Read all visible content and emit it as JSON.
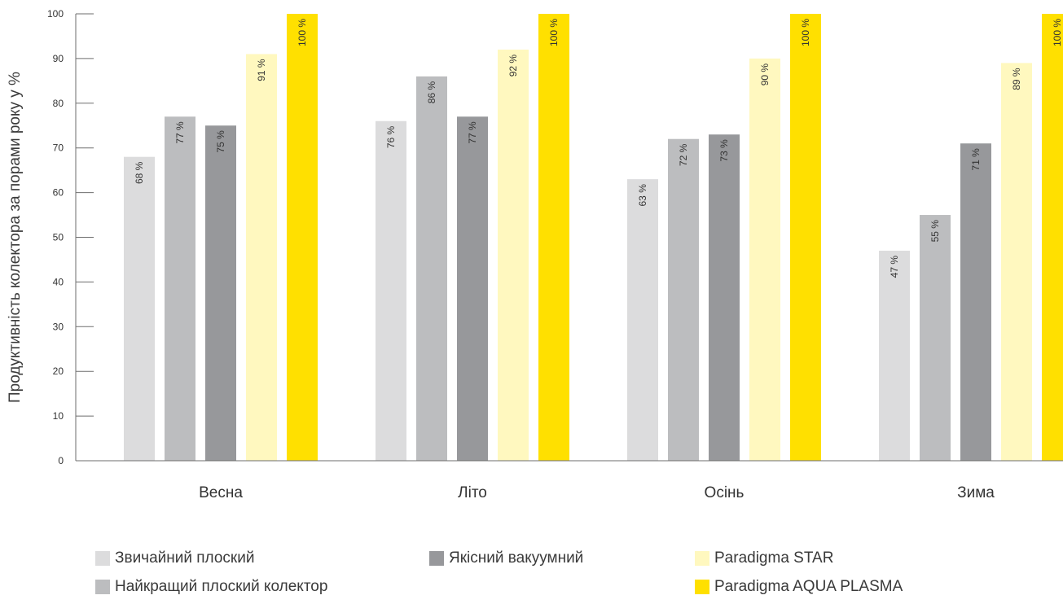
{
  "chart_data": {
    "type": "bar",
    "title": "",
    "xlabel": "",
    "ylabel": "Продуктивність колектора за порами року у %",
    "ylim": [
      0,
      100
    ],
    "yticks": [
      0,
      10,
      20,
      30,
      40,
      50,
      60,
      70,
      80,
      90,
      100
    ],
    "grid": false,
    "legend_position": "bottom",
    "categories": [
      "Весна",
      "Літо",
      "Осінь",
      "Зима"
    ],
    "value_suffix": " %",
    "series": [
      {
        "name": "Звичайний плоский",
        "color": "#dcdcdd",
        "values": [
          68,
          76,
          63,
          47
        ]
      },
      {
        "name": "Найкращий плоский колектор",
        "color": "#bcbdbf",
        "values": [
          77,
          86,
          72,
          55
        ]
      },
      {
        "name": "Якісний вакуумний",
        "color": "#97989b",
        "values": [
          75,
          77,
          73,
          71
        ]
      },
      {
        "name": "Paradigma STAR",
        "color": "#fff8bf",
        "values": [
          91,
          92,
          90,
          89
        ]
      },
      {
        "name": "Paradigma AQUA PLASMA",
        "color": "#ffe000",
        "values": [
          100,
          100,
          100,
          100
        ]
      }
    ]
  }
}
